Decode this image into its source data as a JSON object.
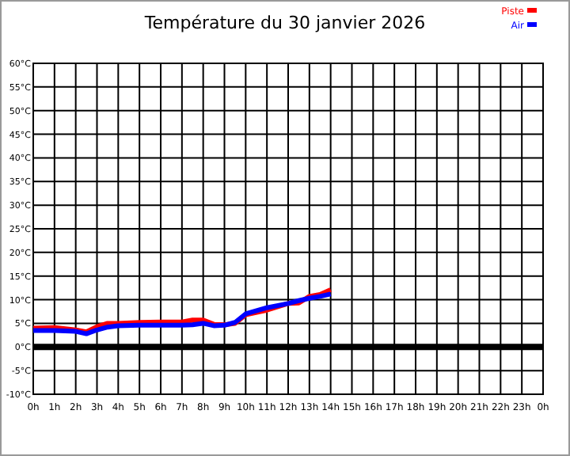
{
  "chart_data": {
    "type": "line",
    "title": "Température du 30 janvier 2026",
    "x": [
      "2026-01-30T00:00",
      "2026-01-30T01:00",
      "2026-01-30T02:00",
      "2026-01-30T02:30",
      "2026-01-30T03:00",
      "2026-01-30T03:30",
      "2026-01-30T04:00",
      "2026-01-30T05:00",
      "2026-01-30T06:00",
      "2026-01-30T07:00",
      "2026-01-30T07:30",
      "2026-01-30T08:00",
      "2026-01-30T08:30",
      "2026-01-30T09:00",
      "2026-01-30T09:30",
      "2026-01-30T10:00",
      "2026-01-30T11:00",
      "2026-01-30T12:00",
      "2026-01-30T12:30",
      "2026-01-30T13:00",
      "2026-01-30T13:30",
      "2026-01-30T14:00"
    ],
    "series": [
      {
        "name": "Piste",
        "color": "#ff0000",
        "values": [
          4,
          4.1,
          3.6,
          3.2,
          4.3,
          5,
          5,
          5.2,
          5.3,
          5.3,
          5.7,
          5.7,
          4.8,
          4.7,
          5,
          6.8,
          7.8,
          9.2,
          9.3,
          10.7,
          11.1,
          12.1
        ]
      },
      {
        "name": "Air",
        "color": "#0000ff",
        "values": [
          3.5,
          3.5,
          3.3,
          2.8,
          3.6,
          4.2,
          4.5,
          4.6,
          4.6,
          4.6,
          4.7,
          5,
          4.5,
          4.6,
          5.2,
          7,
          8.3,
          9.2,
          9.8,
          10.3,
          10.7,
          11.2
        ]
      }
    ],
    "xlim": [
      "2026-01-30T00:00",
      "2026-01-31T00:00"
    ],
    "xticks": [
      {
        "value": "2026-01-30T00:00",
        "label": "0h"
      },
      {
        "value": "2026-01-30T01:00",
        "label": "1h"
      },
      {
        "value": "2026-01-30T02:00",
        "label": "2h"
      },
      {
        "value": "2026-01-30T03:00",
        "label": "3h"
      },
      {
        "value": "2026-01-30T04:00",
        "label": "4h"
      },
      {
        "value": "2026-01-30T05:00",
        "label": "5h"
      },
      {
        "value": "2026-01-30T06:00",
        "label": "6h"
      },
      {
        "value": "2026-01-30T07:00",
        "label": "7h"
      },
      {
        "value": "2026-01-30T08:00",
        "label": "8h"
      },
      {
        "value": "2026-01-30T09:00",
        "label": "9h"
      },
      {
        "value": "2026-01-30T10:00",
        "label": "10h"
      },
      {
        "value": "2026-01-30T11:00",
        "label": "11h"
      },
      {
        "value": "2026-01-30T12:00",
        "label": "12h"
      },
      {
        "value": "2026-01-30T13:00",
        "label": "13h"
      },
      {
        "value": "2026-01-30T14:00",
        "label": "14h"
      },
      {
        "value": "2026-01-30T15:00",
        "label": "15h"
      },
      {
        "value": "2026-01-30T16:00",
        "label": "16h"
      },
      {
        "value": "2026-01-30T17:00",
        "label": "17h"
      },
      {
        "value": "2026-01-30T18:00",
        "label": "18h"
      },
      {
        "value": "2026-01-30T19:00",
        "label": "19h"
      },
      {
        "value": "2026-01-30T20:00",
        "label": "20h"
      },
      {
        "value": "2026-01-30T21:00",
        "label": "21h"
      },
      {
        "value": "2026-01-30T22:00",
        "label": "22h"
      },
      {
        "value": "2026-01-30T23:00",
        "label": "23h"
      },
      {
        "value": "2026-01-31T00:00",
        "label": "0h"
      }
    ],
    "ylim": [
      -10,
      60
    ],
    "yticks": [
      {
        "value": -10,
        "label": "-10°C"
      },
      {
        "value": -5,
        "label": "-5°C"
      },
      {
        "value": 0,
        "label": "0°C"
      },
      {
        "value": 5,
        "label": "5°C"
      },
      {
        "value": 10,
        "label": "10°C"
      },
      {
        "value": 15,
        "label": "15°C"
      },
      {
        "value": 20,
        "label": "20°C"
      },
      {
        "value": 25,
        "label": "25°C"
      },
      {
        "value": 30,
        "label": "30°C"
      },
      {
        "value": 35,
        "label": "35°C"
      },
      {
        "value": 40,
        "label": "40°C"
      },
      {
        "value": 45,
        "label": "45°C"
      },
      {
        "value": 50,
        "label": "50°C"
      },
      {
        "value": 55,
        "label": "55°C"
      },
      {
        "value": 60,
        "label": "60°C"
      }
    ],
    "ref_lines": [
      {
        "axis": "y",
        "value": 0,
        "color": "#000000"
      }
    ],
    "grid": true,
    "legend": "top right",
    "marker": "none",
    "line_style": "solid"
  }
}
